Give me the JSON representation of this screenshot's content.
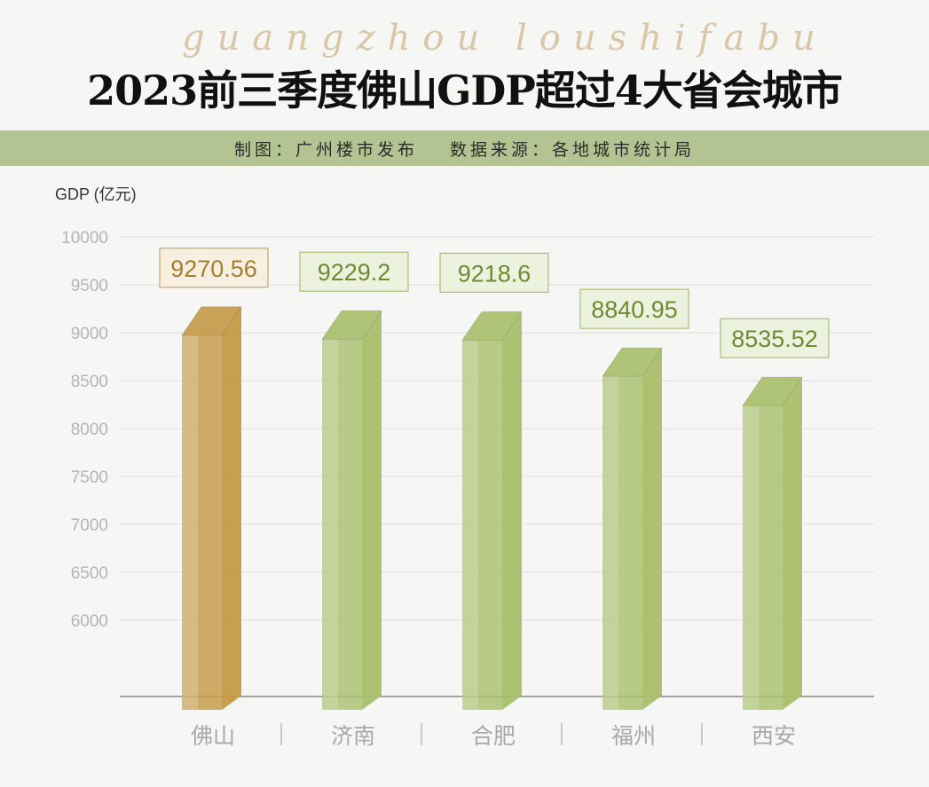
{
  "watermark": "guangzhou loushifabu",
  "header": {
    "title": "2023前三季度佛山GDP超过4大省会城市",
    "credit": "制图：广州楼市发布",
    "source": "数据来源：各地城市统计局"
  },
  "colors": {
    "highlight": "#c49a45",
    "normal": "#a8bf6a",
    "highlight_text": "#a57f2e",
    "normal_text": "#6f8a35",
    "band": "#b3c492"
  },
  "chart_data": {
    "type": "bar",
    "title": "2023前三季度佛山GDP超过4大省会城市",
    "ylabel": "GDP (亿元)",
    "xlabel": "",
    "categories": [
      "佛山",
      "济南",
      "合肥",
      "福州",
      "西安"
    ],
    "values": [
      9270.56,
      9229.2,
      9218.6,
      8840.95,
      8535.52
    ],
    "value_labels": [
      "9270.56",
      "9229.2",
      "9218.6",
      "8840.95",
      "8535.52"
    ],
    "highlight_index": 0,
    "yticks": [
      "10000",
      "9500",
      "9000",
      "8500",
      "8000",
      "7500",
      "7000",
      "6500",
      "6000"
    ],
    "ylim": [
      6000,
      10000
    ],
    "grid": true
  }
}
